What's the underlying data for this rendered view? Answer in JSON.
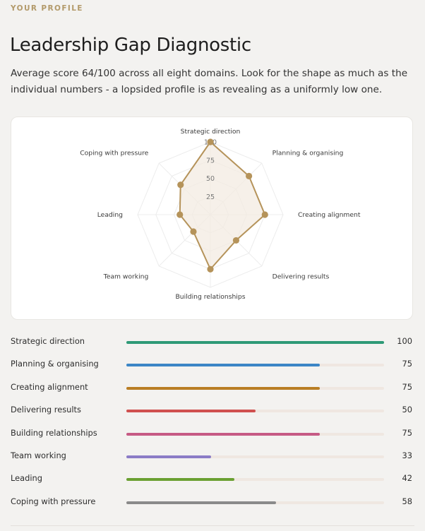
{
  "header": {
    "eyebrow": "YOUR PROFILE",
    "title": "Leadership Gap Diagnostic",
    "subtitle": "Average score 64/100 across all eight domains. Look for the shape as much as the individual numbers - a lopsided profile is as revealing as a uniformly low one."
  },
  "chart_data": {
    "type": "radar",
    "categories": [
      "Strategic direction",
      "Planning & organising",
      "Creating alignment",
      "Delivering results",
      "Building relationships",
      "Team working",
      "Leading",
      "Coping with pressure"
    ],
    "values": [
      100,
      75,
      75,
      50,
      75,
      33,
      42,
      58
    ],
    "rlim": [
      0,
      100
    ],
    "ticks": [
      25,
      50,
      75,
      100
    ],
    "series_color": "#b5935a",
    "fill_color": "#f3ebe2",
    "grid": true
  },
  "scores": [
    {
      "label": "Strategic direction",
      "value": 100,
      "display": "100",
      "color": "#2e9a77"
    },
    {
      "label": "Planning & organising",
      "value": 75,
      "display": "75",
      "color": "#3c86c6"
    },
    {
      "label": "Creating alignment",
      "value": 75,
      "display": "75",
      "color": "#b97e24"
    },
    {
      "label": "Delivering results",
      "value": 50,
      "display": "50",
      "color": "#d0504f"
    },
    {
      "label": "Building relationships",
      "value": 75,
      "display": "75",
      "color": "#c65a84"
    },
    {
      "label": "Team working",
      "value": 33,
      "display": "33",
      "color": "#8b7cc6"
    },
    {
      "label": "Leading",
      "value": 42,
      "display": "42",
      "color": "#6aa032"
    },
    {
      "label": "Coping with pressure",
      "value": 58,
      "display": "58",
      "color": "#8a8a8a"
    }
  ],
  "track_color": "#efe7e1"
}
